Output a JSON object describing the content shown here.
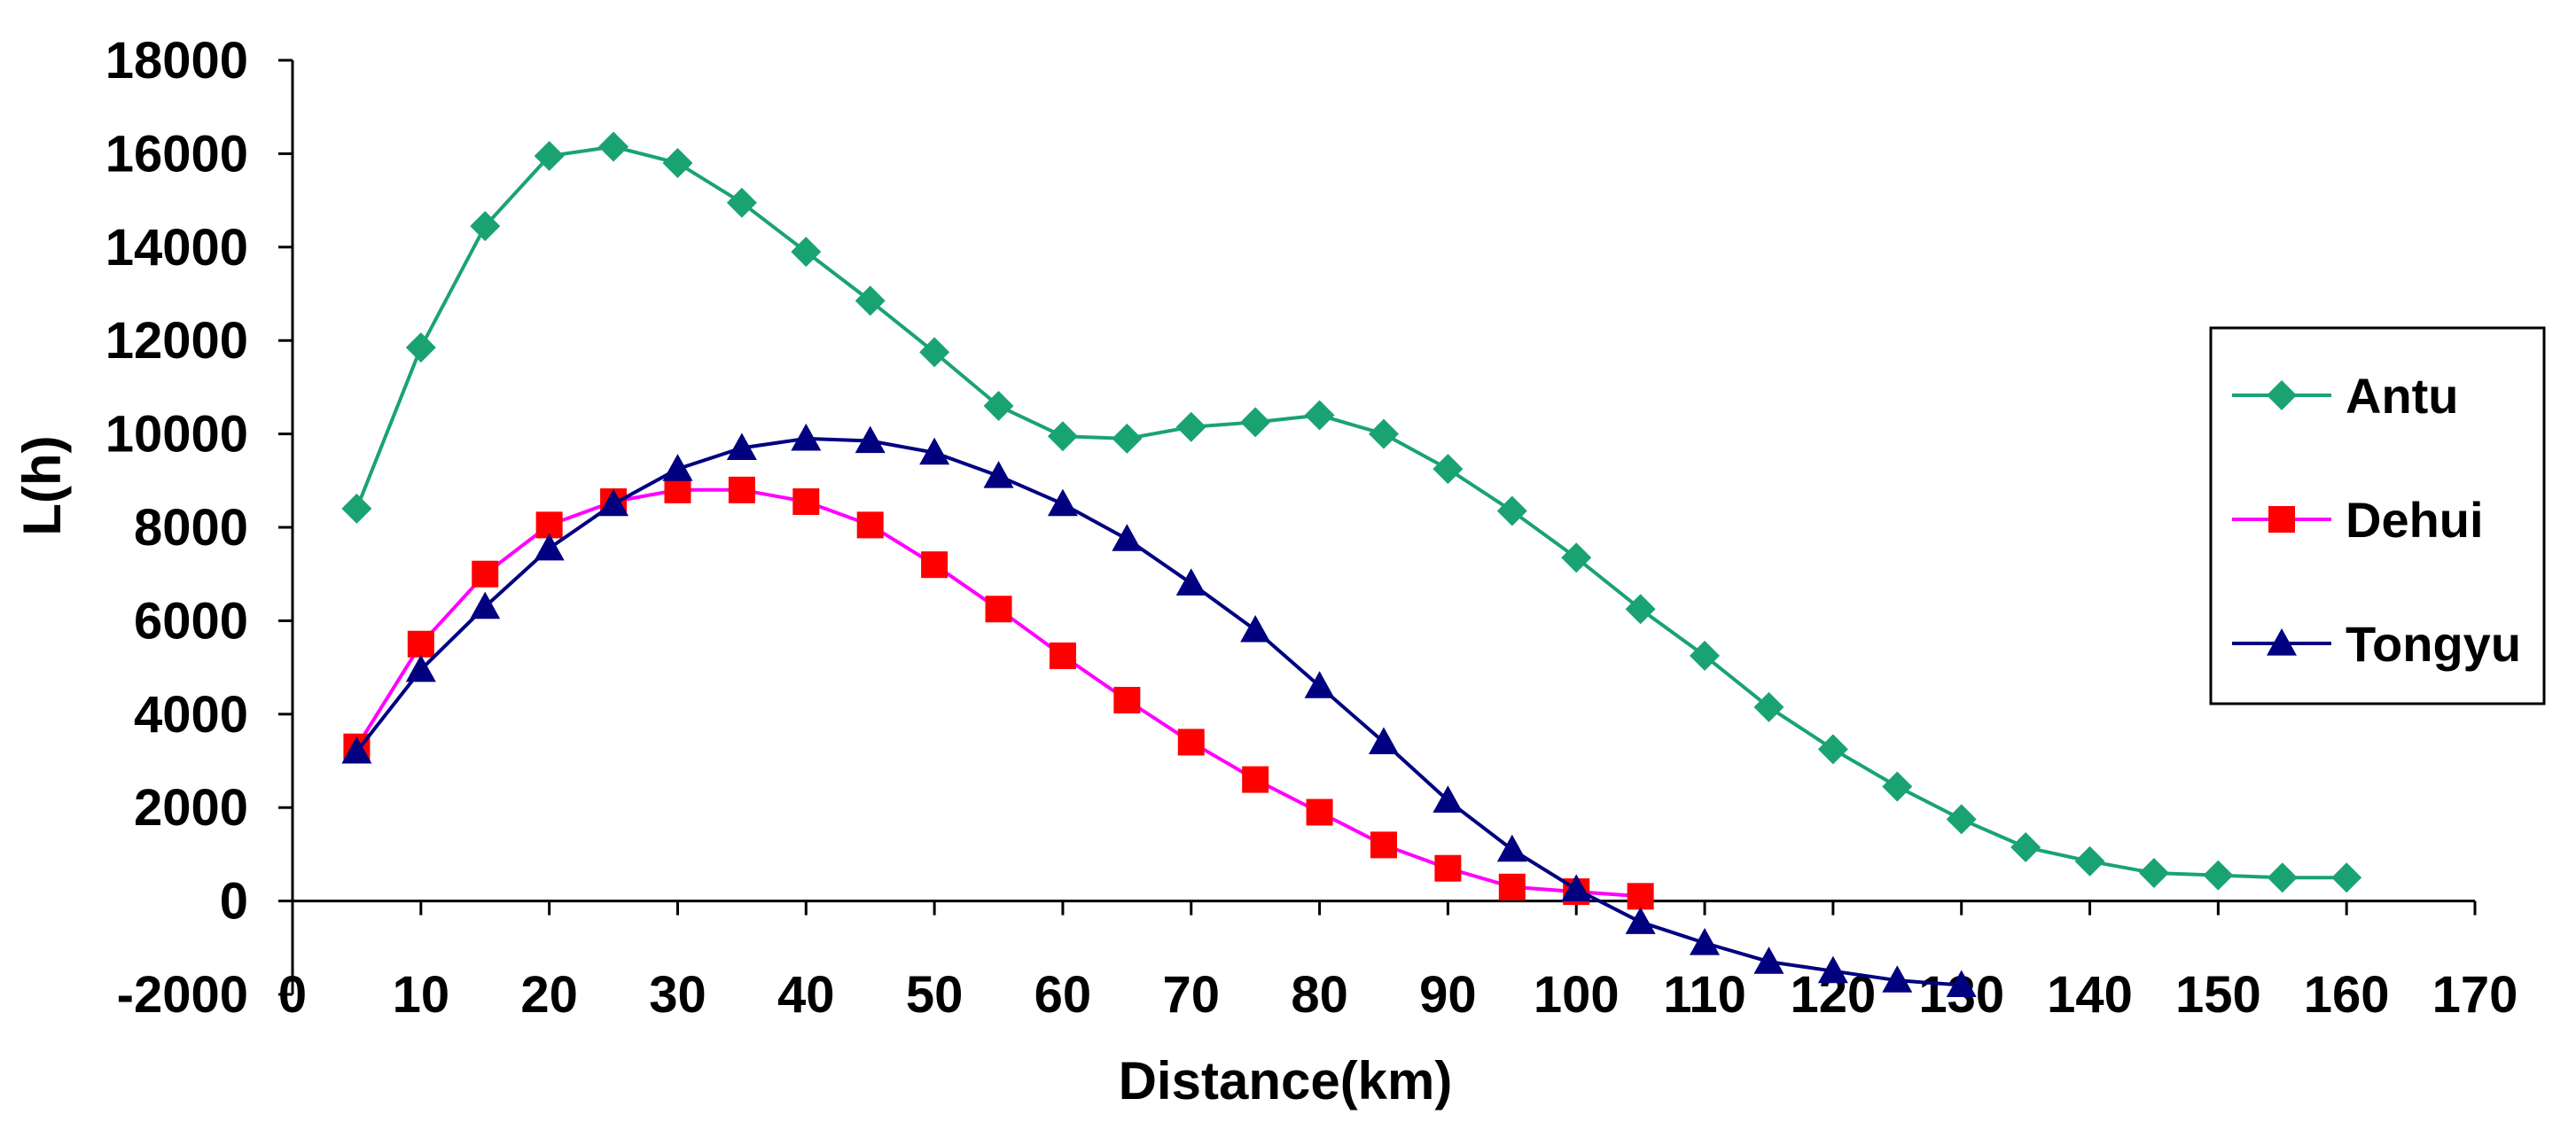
{
  "chart_data": {
    "type": "line",
    "title": "",
    "xlabel": "Distance(km)",
    "ylabel": "L(h)",
    "xlim": [
      0,
      170
    ],
    "ylim": [
      -2000,
      18000
    ],
    "x_ticks": [
      0,
      10,
      20,
      30,
      40,
      50,
      60,
      70,
      80,
      90,
      100,
      110,
      120,
      130,
      140,
      150,
      160,
      170
    ],
    "x_tick_labels": [
      "0",
      "10",
      "20",
      "30",
      "40",
      "50",
      "60",
      "70",
      "80",
      "90",
      "100",
      "110",
      "120",
      "130",
      "140",
      "150",
      "160",
      "170"
    ],
    "y_ticks": [
      -2000,
      0,
      2000,
      4000,
      6000,
      8000,
      10000,
      12000,
      14000,
      16000,
      18000
    ],
    "y_tick_labels": [
      "-2000",
      "0",
      "2000",
      "4000",
      "6000",
      "8000",
      "10000",
      "12000",
      "14000",
      "16000",
      "18000"
    ],
    "grid": false,
    "legend_position": "right",
    "series": [
      {
        "name": "Antu",
        "color": "#1aa372",
        "marker": "diamond",
        "x": [
          5,
          10,
          15,
          20,
          25,
          30,
          35,
          40,
          45,
          50,
          55,
          60,
          65,
          70,
          75,
          80,
          85,
          90,
          95,
          100,
          105,
          110,
          115,
          120,
          125,
          130,
          135,
          140,
          145,
          150,
          155,
          160
        ],
        "values": [
          8400,
          11850,
          14450,
          15950,
          16150,
          15800,
          14950,
          13900,
          12850,
          11750,
          10600,
          9950,
          9900,
          10150,
          10250,
          10400,
          10000,
          9250,
          8350,
          7350,
          6250,
          5250,
          4150,
          3250,
          2450,
          1750,
          1150,
          850,
          600,
          550,
          500,
          500
        ]
      },
      {
        "name": "Dehui",
        "color": "#ff00ff",
        "marker_color": "#ff0000",
        "marker": "square",
        "x": [
          5,
          10,
          15,
          20,
          25,
          30,
          35,
          40,
          45,
          50,
          55,
          60,
          65,
          70,
          75,
          80,
          85,
          90,
          95,
          100,
          105
        ],
        "values": [
          3300,
          5500,
          7000,
          8050,
          8550,
          8800,
          8800,
          8550,
          8050,
          7200,
          6250,
          5250,
          4300,
          3400,
          2600,
          1900,
          1200,
          700,
          300,
          200,
          100
        ]
      },
      {
        "name": "Tongyu",
        "color": "#000080",
        "marker": "triangle",
        "x": [
          5,
          10,
          15,
          20,
          25,
          30,
          35,
          40,
          45,
          50,
          55,
          60,
          65,
          70,
          75,
          80,
          85,
          90,
          95,
          100,
          105,
          110,
          115,
          120,
          125,
          130
        ],
        "values": [
          3200,
          4950,
          6300,
          7550,
          8500,
          9250,
          9700,
          9900,
          9850,
          9600,
          9100,
          8500,
          7750,
          6800,
          5800,
          4600,
          3400,
          2150,
          1100,
          250,
          -450,
          -900,
          -1300,
          -1500,
          -1700,
          -1800
        ]
      }
    ]
  }
}
